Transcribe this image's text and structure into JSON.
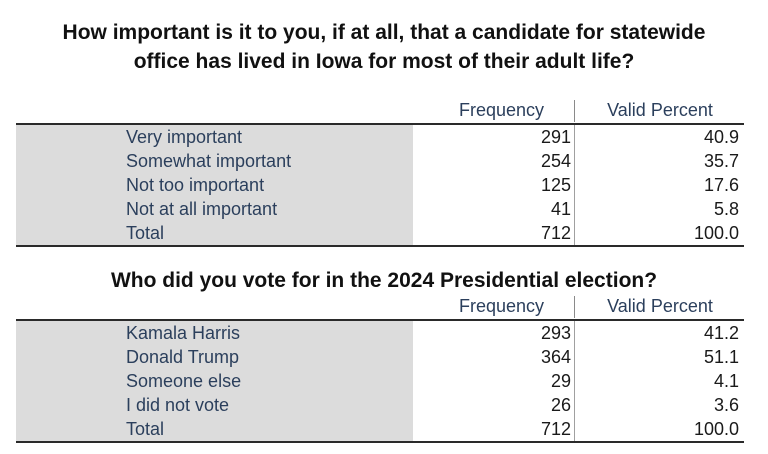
{
  "table1": {
    "title_line1": "How important is it to you, if at all, that a candidate for statewide",
    "title_line2": "office has lived in Iowa for most of their adult life?",
    "col_frequency": "Frequency",
    "col_valid_percent": "Valid Percent",
    "rows": [
      {
        "label": "Very important",
        "frequency": "291",
        "valid_percent": "40.9"
      },
      {
        "label": "Somewhat important",
        "frequency": "254",
        "valid_percent": "35.7"
      },
      {
        "label": "Not too important",
        "frequency": "125",
        "valid_percent": "17.6"
      },
      {
        "label": "Not at all important",
        "frequency": "41",
        "valid_percent": "5.8"
      },
      {
        "label": "Total",
        "frequency": "712",
        "valid_percent": "100.0"
      }
    ]
  },
  "table2": {
    "title": "Who did you vote for in the 2024 Presidential election?",
    "col_frequency": "Frequency",
    "col_valid_percent": "Valid Percent",
    "rows": [
      {
        "label": "Kamala Harris",
        "frequency": "293",
        "valid_percent": "41.2"
      },
      {
        "label": "Donald Trump",
        "frequency": "364",
        "valid_percent": "51.1"
      },
      {
        "label": "Someone else",
        "frequency": "29",
        "valid_percent": "4.1"
      },
      {
        "label": "I did not vote",
        "frequency": "26",
        "valid_percent": "3.6"
      },
      {
        "label": "Total",
        "frequency": "712",
        "valid_percent": "100.0"
      }
    ]
  }
}
